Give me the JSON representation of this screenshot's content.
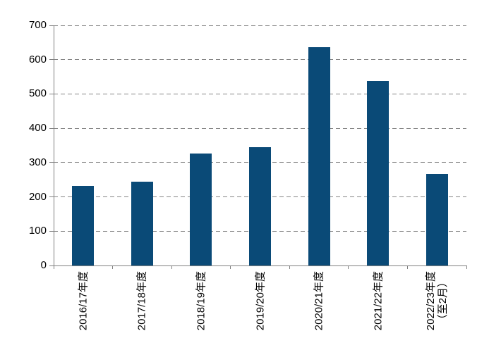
{
  "chart_data": {
    "type": "bar",
    "categories": [
      "2016/17年度",
      "2017/18年度",
      "2018/19年度",
      "2019/20年度",
      "2020/21年度",
      "2021/22年度",
      "2022/23年度\n（至2月）"
    ],
    "values": [
      232,
      245,
      327,
      345,
      637,
      538,
      266
    ],
    "title": "",
    "xlabel": "",
    "ylabel": "",
    "ylim": [
      0,
      700
    ],
    "yticks": [
      0,
      100,
      200,
      300,
      400,
      500,
      600,
      700
    ],
    "grid": "horizontal-dashed",
    "legend_position": "none",
    "colors": {
      "bar": "#0a4a77",
      "grid": "#848484",
      "axis": "#808080",
      "text": "#000000"
    }
  }
}
